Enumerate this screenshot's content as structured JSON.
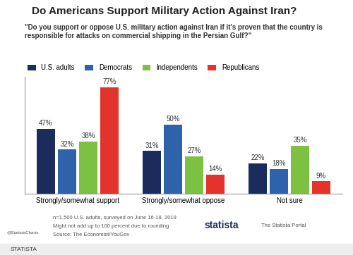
{
  "chart_data": {
    "type": "bar",
    "title": "Do Americans Support Military Action Against Iran?",
    "subtitle": "\"Do you support or oppose U.S. military action against Iran if it's proven that the country is responsible for attacks on commercial shipping in the Persian Gulf?\"",
    "categories": [
      "Strongly/somewhat support",
      "Strongly/somewhat oppose",
      "Not sure"
    ],
    "series": [
      {
        "name": "U.S. adults",
        "color": "#1b2b5c",
        "values": [
          47,
          31,
          22
        ]
      },
      {
        "name": "Democrats",
        "color": "#2e62aa",
        "values": [
          32,
          50,
          18
        ]
      },
      {
        "name": "Independents",
        "color": "#7cc142",
        "values": [
          38,
          27,
          35
        ]
      },
      {
        "name": "Republicans",
        "color": "#e2332c",
        "values": [
          77,
          14,
          9
        ]
      }
    ],
    "value_labels_suffix": "%",
    "ylim": [
      0,
      85
    ],
    "tick_labels": "x",
    "data_labels": true,
    "legend": "top",
    "notes": [
      "n=1,500 U.S. adults, surveyed on June 16-18, 2019",
      "Might not add up to 100 percent due to rounding",
      "Source: The Economist/YouGov"
    ],
    "handle": "@StatistaCharts",
    "brand": "statista",
    "portal": "The Statista Portal",
    "footer": "STATISTA"
  }
}
